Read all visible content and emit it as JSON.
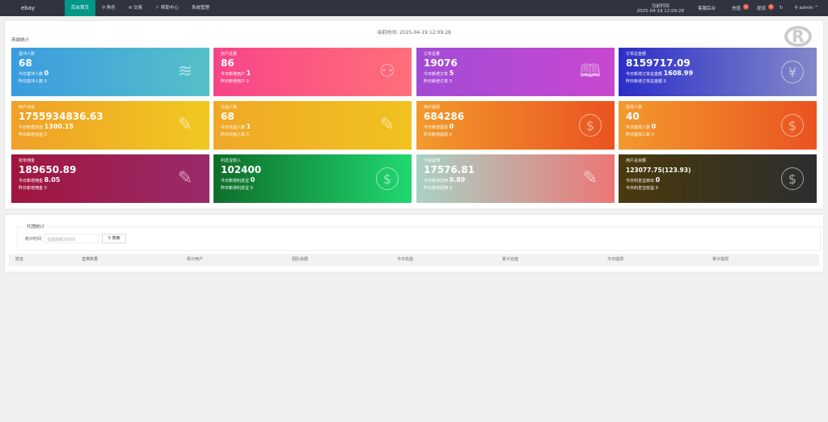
{
  "topbar": {
    "logo": "ebay",
    "nav": [
      "后台首页",
      "角色",
      "交易",
      "帮助中心",
      "系统管理"
    ],
    "nav_icons": [
      "home",
      "user-icon",
      "exchange-icon",
      "flag-icon",
      ""
    ],
    "time_label": "当前时间",
    "time": "2025-04-19 12:09:28",
    "service": "客服后台",
    "recharge": "充值",
    "recharge_badge": "0",
    "withdraw": "提现",
    "withdraw_badge": "0",
    "user": "admin",
    "accent": "#009688"
  },
  "main": {
    "current_time": "当前时间:  2025-04-19 12:09:28",
    "section": "商城统计",
    "cards": [
      {
        "title": "首冲人数",
        "value": "68",
        "today_label": "今日首冲人数",
        "today": "0",
        "yest": "昨日首冲人数 0",
        "icon": "layers-icon",
        "bg": "linear-gradient(90deg,#3a9ce0,#56c0c8)"
      },
      {
        "title": "用户总量",
        "value": "86",
        "today_label": "今日新增用户",
        "today": "1",
        "yest": "昨日新增用户 0",
        "icon": "user-icon",
        "bg": "linear-gradient(90deg,#f7448a,#ff6f78)"
      },
      {
        "title": "订单总量",
        "value": "19076",
        "today_label": "今日新增订单",
        "today": "5",
        "yest": "昨日新增订单 0",
        "icon": "book-icon",
        "bg": "linear-gradient(90deg,#a24bd6,#c848d0)"
      },
      {
        "title": "订单总金额",
        "value": "8159717.09",
        "today_label": "今日新增订单总金额",
        "today": "1608.99",
        "yest": "昨日新增订单总金额 0",
        "icon": "yen-icon",
        "bg": "linear-gradient(90deg,#2c2ec9,#8288c8)"
      },
      {
        "title": "用户充值",
        "value": "1755934836.63",
        "today_label": "今日新增充值",
        "today": "1300.15",
        "yest": "昨日新增充值 0",
        "icon": "question-edit-icon",
        "bg": "linear-gradient(90deg,#f0a028,#f1c820)"
      },
      {
        "title": "充值人数",
        "value": "68",
        "today_label": "今日充值人数",
        "today": "1",
        "yest": "昨日充值人数 0",
        "icon": "question-edit-icon",
        "bg": "linear-gradient(90deg,#f0a828,#f1c21f)"
      },
      {
        "title": "用户提现",
        "value": "684286",
        "today_label": "今日新增提现",
        "today": "0",
        "yest": "昨日新增提现 0",
        "icon": "dollar-icon",
        "bg": "linear-gradient(90deg,#f29a2c,#ea5321)"
      },
      {
        "title": "提现人数",
        "value": "40",
        "today_label": "今日提现人数",
        "today": "0",
        "yest": "昨日提现人数 0",
        "icon": "dollar-icon",
        "bg": "linear-gradient(90deg,#f29a2c,#ea5321)"
      },
      {
        "title": "抢单佣金",
        "value": "189650.89",
        "today_label": "今日新增佣金",
        "today": "8.05",
        "yest": "昨日新增佣金 0",
        "icon": "question-edit-icon",
        "bg": "linear-gradient(90deg,#a0163e,#9a2a6a)"
      },
      {
        "title": "利息宝转入",
        "value": "102400",
        "today_label": "今日新增利息宝",
        "today": "0",
        "yest": "昨日新增利息宝 0",
        "icon": "dollar-icon",
        "bg": "linear-gradient(90deg,#0e6e2a,#20d870)"
      },
      {
        "title": "下级返佣",
        "value": "17576.81",
        "today_label": "今日新增返佣",
        "today": "0.89",
        "yest": "昨日新增返佣 0",
        "icon": "question-edit-icon",
        "bg": "linear-gradient(90deg,#a9d2c4,#ec7676)"
      },
      {
        "title": "用户总余额",
        "value": "123077.75(123.93)",
        "today_label": "今日利息宝转出",
        "today": "0",
        "yest": "今日利息宝收益 0",
        "icon": "dollar-icon",
        "bg": "linear-gradient(90deg,#4a3a0c,#2c2e2e)"
      }
    ]
  },
  "agent": {
    "legend": "代理统计",
    "time_label": "统计时间",
    "time_placeholder": "请选择统计时间",
    "search": "搜索",
    "columns": [
      "姓名",
      "直推数量",
      "累计用户",
      "团队余额",
      "今日充值",
      "累计充值",
      "今日提现",
      "累计提现"
    ]
  }
}
